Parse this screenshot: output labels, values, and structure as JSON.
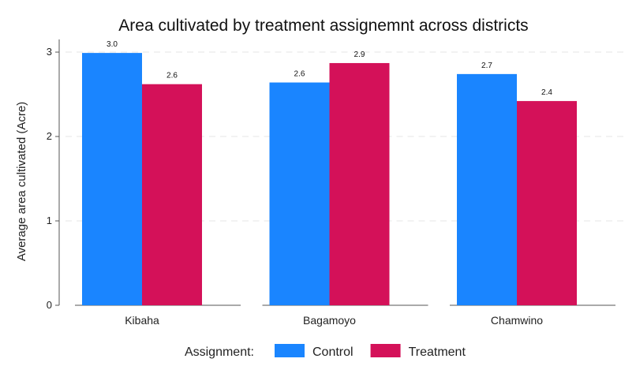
{
  "chart_data": {
    "type": "bar",
    "title": "Area cultivated by treatment assignemnt across districts",
    "ylabel": "Average area cultivated (Acre)",
    "xlabel": "",
    "categories": [
      "Kibaha",
      "Bagamoyo",
      "Chamwino"
    ],
    "series": [
      {
        "name": "Control",
        "color": "#1a85ff",
        "values": [
          2.99,
          2.64,
          2.74
        ],
        "labels": [
          "3.0",
          "2.6",
          "2.7"
        ]
      },
      {
        "name": "Treatment",
        "color": "#d41159",
        "values": [
          2.62,
          2.87,
          2.42
        ],
        "labels": [
          "2.6",
          "2.9",
          "2.4"
        ]
      }
    ],
    "ylim": [
      0,
      3.15
    ],
    "yticks": [
      0,
      1,
      2,
      3
    ],
    "grid": true,
    "legend": {
      "title": "Assignment:",
      "placement": "bottom"
    }
  }
}
